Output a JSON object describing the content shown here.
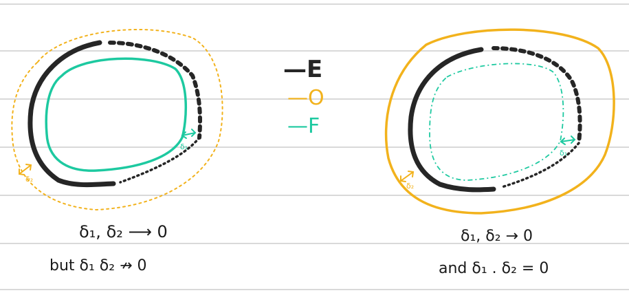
{
  "colors": {
    "paper_line": "#d9d9d9",
    "E": "#262626",
    "O": "#f2b21c",
    "F": "#1dc9a0"
  },
  "legend": {
    "E": "—E",
    "O": "—O",
    "F": "—F"
  },
  "left_panel": {
    "delta1_label": "δ₁",
    "delta2_label": "δ₂",
    "caption_line1": "δ₁, δ₂ ⟶ 0",
    "caption_line2": "but δ₁ δ₂ ↛ 0"
  },
  "right_panel": {
    "delta1_label": "δ₁",
    "delta2_label": "δ₂",
    "caption_line1": "δ₁, δ₂ → 0",
    "caption_line2": "and δ₁ . δ₂ = 0"
  }
}
